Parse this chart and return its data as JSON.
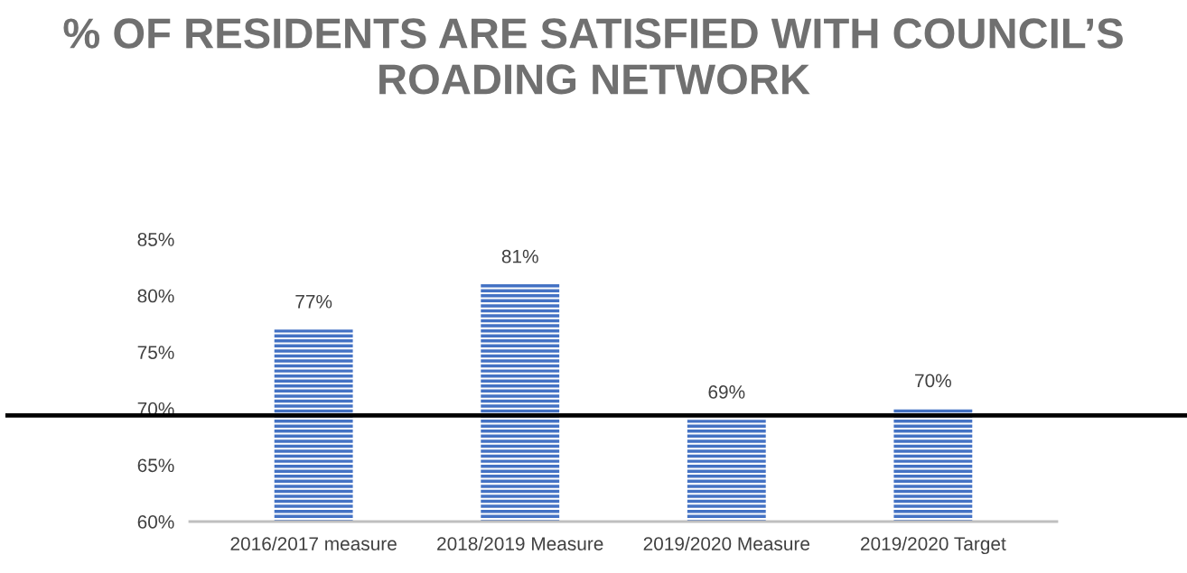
{
  "chart_data": {
    "type": "bar",
    "title": "% OF RESIDENTS ARE SATISFIED WITH COUNCIL’S ROADING NETWORK",
    "categories": [
      "2016/2017 measure",
      "2018/2019 Measure",
      "2019/2020 Measure",
      "2019/2020 Target"
    ],
    "values": [
      77,
      81,
      69,
      70
    ],
    "color": "#4472c4",
    "value_labels": [
      "77%",
      "81%",
      "69%",
      "70%"
    ],
    "ylim": [
      60,
      85
    ],
    "yticks": [
      {
        "value": 60,
        "label": "60%"
      },
      {
        "value": 65,
        "label": "65%"
      },
      {
        "value": 70,
        "label": "70%"
      },
      {
        "value": 75,
        "label": "75%"
      },
      {
        "value": 80,
        "label": "80%"
      },
      {
        "value": 85,
        "label": "85%"
      }
    ],
    "ref_lines": [
      {
        "axis": "y",
        "value": 69.4,
        "color": "#000000"
      }
    ],
    "grid": false,
    "legend": false
  }
}
